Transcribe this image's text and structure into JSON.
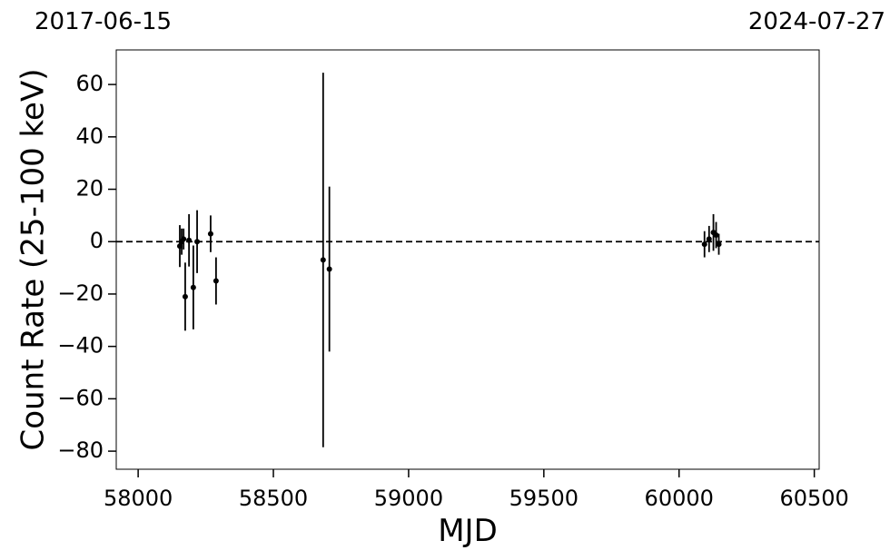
{
  "chart_data": {
    "type": "errorbar",
    "top_left_label": "2017-06-15",
    "top_right_label": "2024-07-27",
    "xlabel": "MJD",
    "ylabel": "Count Rate (25-100 keV)",
    "xlim": [
      57919,
      60518
    ],
    "ylim": [
      -86.9,
      73.2
    ],
    "xticks": [
      58000,
      58500,
      59000,
      59500,
      60000,
      60500
    ],
    "yticks": [
      {
        "value": -80,
        "label": "−80"
      },
      {
        "value": -60,
        "label": "−60"
      },
      {
        "value": -40,
        "label": "−40"
      },
      {
        "value": -20,
        "label": "−20"
      },
      0,
      20,
      40,
      60
    ],
    "hline": 0,
    "series": [
      {
        "color": "#000000",
        "x": [
          58154,
          58161,
          58168,
          58174,
          58188,
          58204,
          58218,
          58268,
          58288,
          58684,
          58707,
          60094,
          60111,
          60127,
          60137,
          60147
        ],
        "values": [
          -1.7,
          0,
          1,
          -21,
          0.5,
          -17.5,
          0,
          3,
          -15,
          -7,
          -10.5,
          -1,
          1,
          3.5,
          2.5,
          -1
        ],
        "errors": [
          8,
          5,
          4,
          13,
          10,
          16,
          12,
          7,
          9,
          71.5,
          31.5,
          5,
          5,
          7,
          5,
          4
        ]
      }
    ]
  }
}
